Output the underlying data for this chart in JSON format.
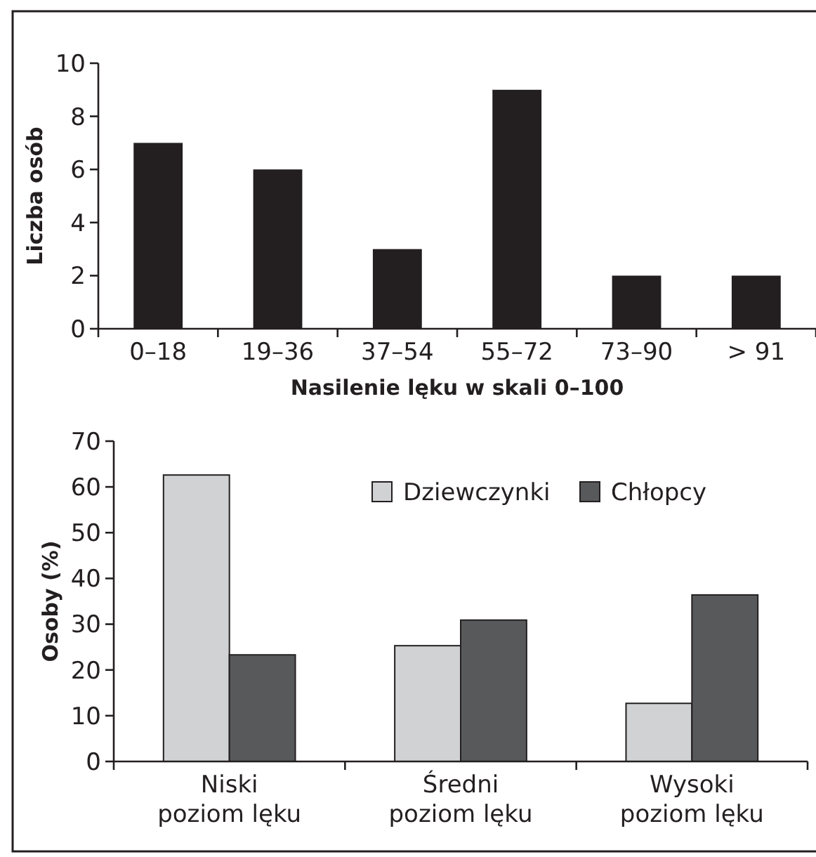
{
  "chart_data": [
    {
      "type": "bar",
      "categories": [
        "0–18",
        "19–36",
        "37–54",
        "55–72",
        "73–90",
        "> 91"
      ],
      "values": [
        7,
        6,
        3,
        9,
        2,
        2
      ],
      "color": "#231f20",
      "xlabel": "Nasilenie lęku w skali 0–100",
      "ylabel": "Liczba osób",
      "ylim": [
        0,
        10
      ],
      "yticks": [
        0,
        2,
        4,
        6,
        8,
        10
      ],
      "grid": false,
      "legend": false
    },
    {
      "type": "bar",
      "categories": [
        "Niski\npoziom lęku",
        "Średni\npoziom lęku",
        "Wysoki\npoziom lęku"
      ],
      "series": [
        {
          "name": "Dziewczynki",
          "color": "#d1d2d4",
          "values": [
            62.6,
            25.3,
            12.7
          ]
        },
        {
          "name": "Chłopcy",
          "color": "#58595b",
          "values": [
            23.3,
            30.9,
            36.4
          ]
        }
      ],
      "ylabel": "Osoby (%)",
      "ylim": [
        0,
        70
      ],
      "yticks": [
        0,
        10,
        20,
        30,
        40,
        50,
        60,
        70
      ],
      "grid": false,
      "legend": "top right"
    }
  ]
}
